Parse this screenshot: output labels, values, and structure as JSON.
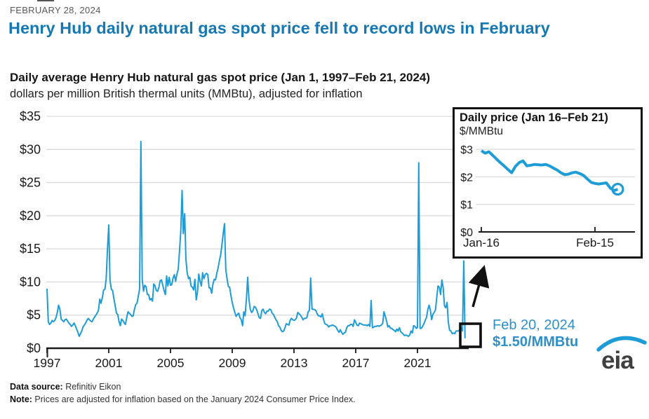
{
  "page": {
    "date": "FEBRUARY 28, 2024",
    "title": "Henry Hub daily natural gas spot price fell to record lows in February"
  },
  "chart": {
    "heading": "Daily average Henry Hub natural gas spot price (Jan 1, 1997–Feb 21, 2024)",
    "subtitle": "dollars per million British thermal units (MMBtu), adjusted for inflation"
  },
  "annotation": {
    "date": "Feb 20, 2024",
    "price": "$1.50/MMBtu"
  },
  "inset": {
    "title": "Daily price (Jan 16–Feb 21)",
    "unit": "$/MMBtu"
  },
  "logo": {
    "text": "eia"
  },
  "footer": {
    "source_label": "Data source:",
    "source_text": " Refinitiv Eikon",
    "note_label": "Note:",
    "note_text": " Prices are adjusted for inflation based on the January 2024 Consumer Price Index."
  },
  "colors": {
    "line": "#1E9CD7",
    "grid": "#D9D9D9",
    "axis": "#1A1A1A",
    "title_blue": "#1578B3",
    "annotation_blue": "#2E8FCB",
    "date_gray": "#58595B",
    "logo_text": "#3F3F3F"
  },
  "chart_data": [
    {
      "type": "line",
      "name": "main",
      "title": "Daily average Henry Hub natural gas spot price (Jan 1, 1997–Feb 21, 2024)",
      "ylabel": "dollars per million British thermal units (MMBtu), adjusted for inflation",
      "ylim": [
        0,
        35
      ],
      "grid": "horizontal",
      "legend": "none",
      "y_tick_labels": [
        "$0",
        "$5",
        "$10",
        "$15",
        "$20",
        "$25",
        "$30",
        "$35"
      ],
      "x_tick_labels": [
        "1997",
        "2001",
        "2005",
        "2009",
        "2013",
        "2017",
        "2021"
      ],
      "x_start_year": 1997,
      "x_step_months": 1,
      "x_end": "Feb 2024",
      "values": [
        9.0,
        4.0,
        3.6,
        3.8,
        4.2,
        4.0,
        4.2,
        4.6,
        5.4,
        6.5,
        5.9,
        4.4,
        4.2,
        4.0,
        4.3,
        4.4,
        4.1,
        3.8,
        3.6,
        3.3,
        3.5,
        3.8,
        3.4,
        2.9,
        2.4,
        1.8,
        2.2,
        2.6,
        3.2,
        3.5,
        3.8,
        4.2,
        4.5,
        4.3,
        4.1,
        4.0,
        4.4,
        4.7,
        5.0,
        5.3,
        5.7,
        7.4,
        6.8,
        7.6,
        8.8,
        8.9,
        10.4,
        15.0,
        18.6,
        10.2,
        8.9,
        8.7,
        7.5,
        6.4,
        5.3,
        5.1,
        4.0,
        3.4,
        4.4,
        4.2,
        3.8,
        3.6,
        4.7,
        5.5,
        5.3,
        5.1,
        4.8,
        4.9,
        5.9,
        6.6,
        6.8,
        7.9,
        9.0,
        31.2,
        10.4,
        8.6,
        9.5,
        9.3,
        8.1,
        8.1,
        7.3,
        7.5,
        7.1,
        9.7,
        9.4,
        8.7,
        8.6,
        9.2,
        10.2,
        10.3,
        9.5,
        8.7,
        8.1,
        10.9,
        9.4,
        10.7,
        9.5,
        9.6,
        10.6,
        11.1,
        10.1,
        11.2,
        11.9,
        14.6,
        17.8,
        23.8,
        17.3,
        20.3,
        13.4,
        11.4,
        10.5,
        10.7,
        9.4,
        9.2,
        8.8,
        10.4,
        7.3,
        8.5,
        11.2,
        10.1,
        9.4,
        11.4,
        10.5,
        11.1,
        11.3,
        11.1,
        9.1,
        9.1,
        8.3,
        9.7,
        10.4,
        10.3,
        11.3,
        12.1,
        13.2,
        14.1,
        15.6,
        17.4,
        18.8,
        11.9,
        10.4,
        9.3,
        9.2,
        7.9,
        6.9,
        6.1,
        5.4,
        4.8,
        5.1,
        5.3,
        4.6,
        4.3,
        3.4,
        5.5,
        4.9,
        7.4,
        10.7,
        7.4,
        5.9,
        5.4,
        5.6,
        6.3,
        6.2,
        5.8,
        5.2,
        4.6,
        4.5,
        5.7,
        5.9,
        5.4,
        5.2,
        5.6,
        5.6,
        5.9,
        5.8,
        5.3,
        5.1,
        4.7,
        4.3,
        4.0,
        3.4,
        3.2,
        2.7,
        2.5,
        2.6,
        3.1,
        3.7,
        3.6,
        3.5,
        4.2,
        4.5,
        4.3,
        4.2,
        4.3,
        4.6,
        5.4,
        5.2,
        5.0,
        4.7,
        4.3,
        4.5,
        4.5,
        4.6,
        5.5,
        5.7,
        10.6,
        5.9,
        5.9,
        5.8,
        5.7,
        5.2,
        4.9,
        4.9,
        4.7,
        5.2,
        4.3,
        3.7,
        3.6,
        3.5,
        3.2,
        3.4,
        3.4,
        3.5,
        3.4,
        3.3,
        3.1,
        2.7,
        2.4,
        2.8,
        2.4,
        2.1,
        2.3,
        2.4,
        3.1,
        3.4,
        3.4,
        3.6,
        3.6,
        3.3,
        4.3,
        3.9,
        3.5,
        3.4,
        3.8,
        3.7,
        3.6,
        3.5,
        3.5,
        3.5,
        3.4,
        3.6,
        3.3,
        7.2,
        3.1,
        3.2,
        3.3,
        3.3,
        3.4,
        3.3,
        3.4,
        3.5,
        3.8,
        5.5,
        4.8,
        4.1,
        3.2,
        3.4,
        3.0,
        3.0,
        2.8,
        2.7,
        2.5,
        2.9,
        2.6,
        3.1,
        2.5,
        2.3,
        2.1,
        1.9,
        2.0,
        1.9,
        1.8,
        2.0,
        2.6,
        2.3,
        3.4,
        3.3,
        3.0,
        3.1,
        28.0,
        3.0,
        3.0,
        3.3,
        3.7,
        4.2,
        4.6,
        5.8,
        6.5,
        5.8,
        4.3,
        5.1,
        5.4,
        5.8,
        7.7,
        9.4,
        9.2,
        8.1,
        10.3,
        9.1,
        6.4,
        6.1,
        6.9,
        3.9,
        2.7,
        2.6,
        2.2,
        2.3,
        2.2,
        2.6,
        2.6,
        2.6,
        2.9,
        3.1,
        2.6,
        13.2,
        1.5
      ]
    },
    {
      "type": "line",
      "name": "inset",
      "title": "Daily price (Jan 16–Feb 21)",
      "unit": "$/MMBtu",
      "ylim": [
        0,
        3.5
      ],
      "y_tick_labels": [
        "$0",
        "$1",
        "$2",
        "$3"
      ],
      "x_tick_labels": [
        "Jan-16",
        "Feb-15"
      ],
      "x_tick_days": [
        0,
        30
      ],
      "x_start": "Jan 16, 2024",
      "x_end": "Feb 21, 2024",
      "end_marker": "open-circle",
      "values": [
        2.95,
        2.86,
        2.91,
        2.78,
        2.65,
        2.52,
        2.4,
        2.27,
        2.15,
        2.38,
        2.52,
        2.58,
        2.4,
        2.42,
        2.45,
        2.44,
        2.43,
        2.45,
        2.4,
        2.32,
        2.25,
        2.15,
        2.08,
        2.1,
        2.15,
        2.17,
        2.12,
        2.05,
        1.92,
        1.8,
        1.76,
        1.74,
        1.76,
        1.78,
        1.6,
        1.5,
        1.55
      ]
    }
  ]
}
